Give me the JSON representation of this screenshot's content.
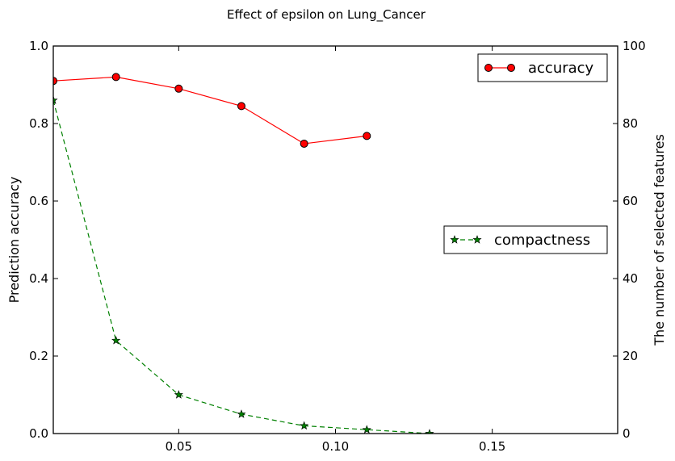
{
  "chart_data": {
    "type": "line",
    "title": "Effect of epsilon on Lung_Cancer",
    "xlabel": "",
    "ylabel": "Prediction accuracy",
    "y2label": "The number of selected features",
    "xlim": [
      0.01,
      0.19
    ],
    "ylim": [
      0,
      1.0
    ],
    "y2lim": [
      0,
      100
    ],
    "xticks": [
      "0.05",
      "0.10",
      "0.15"
    ],
    "yticks": [
      "0.0",
      "0.2",
      "0.4",
      "0.6",
      "0.8",
      "1.0"
    ],
    "y2ticks": [
      "0",
      "20",
      "40",
      "60",
      "80",
      "100"
    ],
    "grid": false,
    "series": [
      {
        "name": "accuracy",
        "axis": "left",
        "color": "#ff0000",
        "marker": "circle",
        "linestyle": "solid",
        "legend_position": "upper-right",
        "x": [
          0.01,
          0.03,
          0.05,
          0.07,
          0.09,
          0.11
        ],
        "y": [
          0.91,
          0.92,
          0.89,
          0.845,
          0.748,
          0.768
        ]
      },
      {
        "name": "compactness",
        "axis": "right",
        "color": "#008000",
        "marker": "star",
        "linestyle": "dashed",
        "legend_position": "center-right",
        "x": [
          0.01,
          0.03,
          0.05,
          0.07,
          0.09,
          0.11,
          0.13
        ],
        "y": [
          86,
          24,
          10,
          5,
          2,
          1,
          0
        ]
      }
    ]
  }
}
